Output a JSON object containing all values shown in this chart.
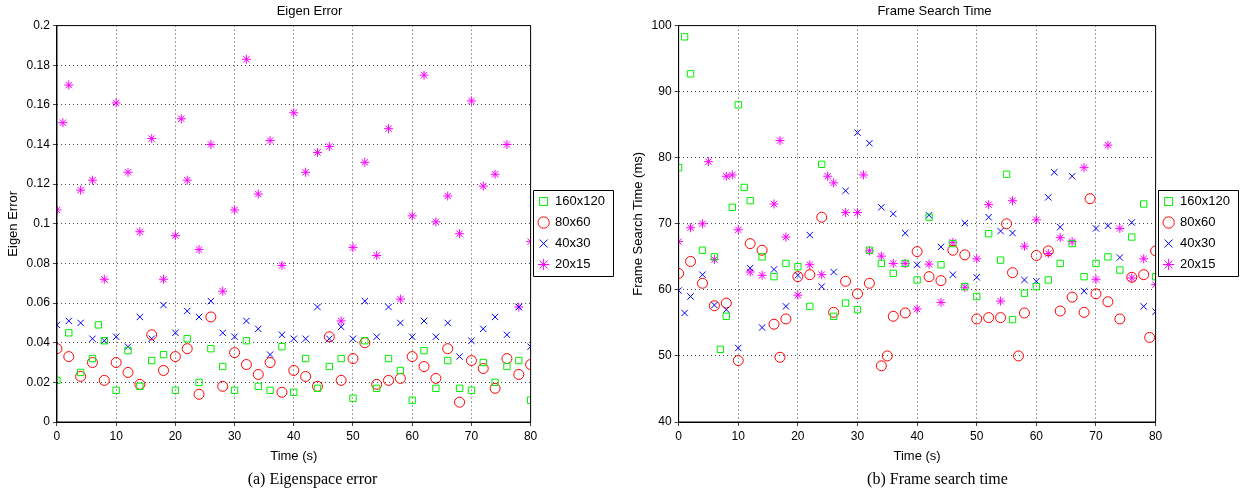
{
  "chart_data": [
    {
      "type": "scatter",
      "title": "Eigen Error",
      "xlabel": "Time (s)",
      "ylabel": "Eigen Error",
      "xlim": [
        0,
        80
      ],
      "xticks": [
        0,
        10,
        20,
        30,
        40,
        50,
        60,
        70,
        80
      ],
      "ylim": [
        0,
        0.2
      ],
      "yticks": [
        0,
        0.02,
        0.04,
        0.06,
        0.08,
        0.1,
        0.12,
        0.14,
        0.16,
        0.18,
        0.2
      ],
      "grid": true,
      "legend": "right",
      "annotations": [
        "(a)  Eigenspace error"
      ],
      "series": [
        {
          "name": "160x120",
          "color": "#00ee00",
          "marker": "square",
          "x": [
            0,
            2,
            4,
            6,
            7,
            8,
            10,
            12,
            14,
            16,
            18,
            20,
            22,
            24,
            26,
            28,
            30,
            32,
            34,
            36,
            38,
            40,
            42,
            44,
            46,
            48,
            50,
            52,
            54,
            56,
            58,
            60,
            62,
            64,
            66,
            68,
            70,
            72,
            74,
            76,
            78,
            80
          ],
          "values": [
            0.021,
            0.045,
            0.025,
            0.032,
            0.049,
            0.041,
            0.016,
            0.036,
            0.018,
            0.031,
            0.034,
            0.016,
            0.042,
            0.02,
            0.037,
            0.028,
            0.016,
            0.041,
            0.018,
            0.016,
            0.038,
            0.015,
            0.032,
            0.017,
            0.028,
            0.032,
            0.012,
            0.041,
            0.017,
            0.032,
            0.026,
            0.011,
            0.036,
            0.017,
            0.031,
            0.017,
            0.016,
            0.03,
            0.02,
            0.028,
            0.031,
            0.011
          ]
        },
        {
          "name": "80x60",
          "color": "#ff0000",
          "marker": "circle",
          "x": [
            0,
            2,
            4,
            6,
            8,
            10,
            12,
            14,
            16,
            18,
            20,
            22,
            24,
            26,
            28,
            30,
            32,
            34,
            36,
            38,
            40,
            42,
            44,
            46,
            48,
            50,
            52,
            54,
            56,
            58,
            60,
            62,
            64,
            66,
            68,
            70,
            72,
            74,
            76,
            78,
            80
          ],
          "values": [
            0.037,
            0.033,
            0.023,
            0.03,
            0.021,
            0.03,
            0.025,
            0.019,
            0.044,
            0.026,
            0.033,
            0.037,
            0.014,
            0.053,
            0.018,
            0.035,
            0.029,
            0.024,
            0.03,
            0.015,
            0.026,
            0.023,
            0.018,
            0.043,
            0.021,
            0.032,
            0.04,
            0.019,
            0.021,
            0.022,
            0.033,
            0.028,
            0.022,
            0.037,
            0.01,
            0.031,
            0.027,
            0.017,
            0.032,
            0.024,
            0.029
          ]
        },
        {
          "name": "40x30",
          "color": "#0000ff",
          "marker": "cross",
          "x": [
            0,
            2,
            4,
            6,
            8,
            10,
            12,
            14,
            16,
            18,
            20,
            22,
            24,
            26,
            28,
            30,
            32,
            34,
            36,
            38,
            40,
            42,
            44,
            46,
            48,
            50,
            52,
            54,
            56,
            58,
            60,
            62,
            64,
            66,
            68,
            70,
            72,
            74,
            76,
            78,
            80
          ],
          "values": [
            0.049,
            0.051,
            0.05,
            0.042,
            0.041,
            0.043,
            0.038,
            0.053,
            0.042,
            0.059,
            0.045,
            0.056,
            0.053,
            0.061,
            0.045,
            0.043,
            0.051,
            0.047,
            0.034,
            0.044,
            0.042,
            0.042,
            0.058,
            0.042,
            0.048,
            0.042,
            0.061,
            0.043,
            0.058,
            0.05,
            0.043,
            0.051,
            0.043,
            0.05,
            0.033,
            0.041,
            0.047,
            0.053,
            0.044,
            0.058,
            0.038
          ]
        },
        {
          "name": "20x15",
          "color": "#ff00ff",
          "x": [
            0,
            1,
            2,
            4,
            6,
            8,
            10,
            12,
            14,
            16,
            18,
            20,
            21,
            22,
            24,
            26,
            28,
            30,
            32,
            34,
            36,
            38,
            40,
            42,
            44,
            46,
            48,
            50,
            52,
            54,
            56,
            58,
            60,
            62,
            64,
            66,
            68,
            70,
            72,
            74,
            76,
            78,
            80
          ],
          "values": [
            0.107,
            0.151,
            0.17,
            0.117,
            0.122,
            0.072,
            0.161,
            0.126,
            0.096,
            0.143,
            0.072,
            0.094,
            0.153,
            0.122,
            0.087,
            0.14,
            0.066,
            0.107,
            0.183,
            0.115,
            0.142,
            0.079,
            0.156,
            0.126,
            0.136,
            0.139,
            0.051,
            0.088,
            0.131,
            0.084,
            0.148,
            0.062,
            0.104,
            0.175,
            0.101,
            0.114,
            0.095,
            0.162,
            0.119,
            0.125,
            0.14,
            0.058,
            0.091
          ]
        }
      ]
    },
    {
      "type": "scatter",
      "title": "Frame Search Time",
      "xlabel": "Time (s)",
      "ylabel": "Frame Search Time (ms)",
      "xlim": [
        0,
        80
      ],
      "xticks": [
        0,
        10,
        20,
        30,
        40,
        50,
        60,
        70,
        80
      ],
      "ylim": [
        40,
        100
      ],
      "yticks": [
        40,
        50,
        60,
        70,
        80,
        90,
        100
      ],
      "grid": true,
      "legend": "right",
      "annotations": [
        "(b)  Frame search time"
      ],
      "series": [
        {
          "name": "160x120",
          "color": "#00ee00",
          "marker": "square",
          "x": [
            0,
            1,
            2,
            4,
            6,
            7,
            8,
            9,
            10,
            11,
            12,
            14,
            16,
            18,
            20,
            22,
            24,
            26,
            28,
            30,
            32,
            34,
            36,
            38,
            40,
            42,
            44,
            46,
            48,
            50,
            52,
            54,
            55,
            56,
            58,
            60,
            62,
            64,
            66,
            68,
            70,
            72,
            74,
            76,
            78,
            80
          ],
          "values": [
            78.5,
            98.3,
            92.7,
            66,
            65,
            51,
            56,
            72.5,
            88,
            75.5,
            73.5,
            65,
            62,
            64,
            63.5,
            57.5,
            79,
            56,
            58,
            57,
            66,
            64,
            62.5,
            64,
            61.5,
            71,
            63.8,
            67,
            60.5,
            59,
            68.5,
            64.5,
            77.5,
            55.5,
            59.5,
            60.5,
            61.5,
            64,
            67,
            62,
            64,
            65,
            63,
            68,
            73,
            62
          ]
        },
        {
          "name": "80x60",
          "color": "#ff0000",
          "marker": "circle",
          "x": [
            0,
            2,
            4,
            6,
            8,
            10,
            12,
            14,
            16,
            17,
            18,
            20,
            22,
            24,
            26,
            28,
            30,
            32,
            34,
            35,
            36,
            38,
            40,
            42,
            44,
            46,
            48,
            50,
            52,
            54,
            55,
            56,
            57,
            58,
            60,
            62,
            64,
            66,
            68,
            69,
            70,
            72,
            74,
            76,
            78,
            79,
            80
          ],
          "values": [
            62.5,
            64.3,
            61,
            57.6,
            58,
            49.3,
            67,
            66,
            54.8,
            49.8,
            55.6,
            62,
            62.3,
            71,
            56.6,
            61.3,
            59.4,
            61,
            48.5,
            50,
            56,
            56.5,
            65.8,
            62,
            61.4,
            66,
            65.3,
            55.6,
            55.8,
            55.8,
            70,
            62.6,
            50,
            56.5,
            65.2,
            65.9,
            56.8,
            58.9,
            56.6,
            73.8,
            59.4,
            58.2,
            55.6,
            61.9,
            62.3,
            52.8,
            65.9
          ]
        },
        {
          "name": "40x30",
          "color": "#0000ff",
          "marker": "cross",
          "x": [
            0,
            1,
            2,
            4,
            6,
            8,
            10,
            12,
            14,
            16,
            18,
            20,
            22,
            24,
            26,
            28,
            30,
            32,
            34,
            36,
            38,
            40,
            42,
            44,
            46,
            48,
            50,
            52,
            54,
            56,
            58,
            60,
            62,
            63,
            64,
            66,
            68,
            70,
            72,
            74,
            76,
            78,
            80
          ],
          "values": [
            59.9,
            56.5,
            59,
            62.3,
            57.7,
            57,
            51.2,
            63.3,
            54.3,
            63.1,
            57.5,
            62.2,
            68.3,
            60.5,
            62.7,
            75,
            83.8,
            82.2,
            72.5,
            71.5,
            68.6,
            63.8,
            71.3,
            66.5,
            62.3,
            70.1,
            61.9,
            71,
            68.9,
            68.6,
            61.5,
            61.3,
            74,
            77.8,
            69.5,
            77.2,
            59.8,
            69.3,
            69.7,
            64.9,
            70.2,
            57.5,
            56.7
          ]
        },
        {
          "name": "20x15",
          "color": "#ff00ff",
          "x": [
            0,
            2,
            4,
            5,
            6,
            8,
            9,
            10,
            12,
            14,
            16,
            17,
            18,
            20,
            22,
            24,
            25,
            26,
            28,
            30,
            31,
            32,
            34,
            36,
            38,
            40,
            42,
            44,
            46,
            48,
            50,
            52,
            54,
            56,
            58,
            60,
            62,
            64,
            66,
            68,
            70,
            72,
            74,
            76,
            78,
            80
          ],
          "values": [
            67.3,
            69.4,
            70,
            79.4,
            64.6,
            77.2,
            77.4,
            69.1,
            62.7,
            62.2,
            73,
            82.6,
            68,
            59.2,
            63.8,
            62.3,
            77.2,
            76.2,
            71.7,
            71.7,
            77.4,
            65.9,
            65.1,
            64,
            64,
            57.1,
            63.9,
            58.1,
            67.2,
            60.4,
            64.7,
            72.9,
            58.3,
            73.5,
            66.6,
            70.6,
            65.5,
            67.9,
            67.3,
            78.5,
            61.6,
            81.9,
            69.3,
            61.8,
            64.7,
            60.8
          ]
        }
      ]
    }
  ]
}
